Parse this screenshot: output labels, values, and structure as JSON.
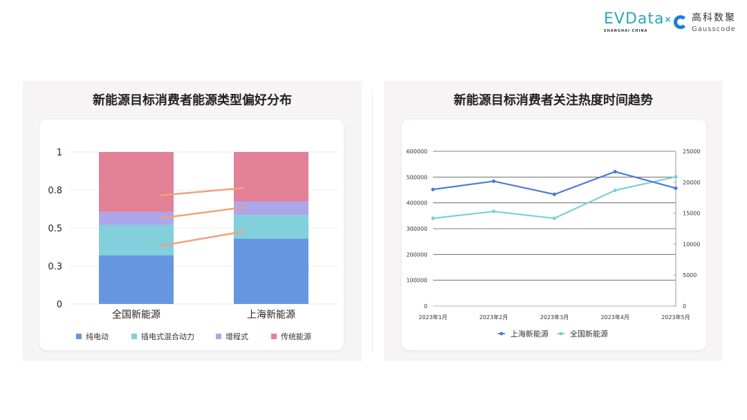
{
  "logos": {
    "evdata": "EVData",
    "evdata_sub": "SHANGHAI CHINA",
    "gauss_cn": "高科数聚",
    "gauss_en": "Gausscode"
  },
  "chart_data": [
    {
      "type": "bar",
      "stacked": true,
      "title": "新能源目标消费者能源类型偏好分布",
      "categories": [
        "全国新能源",
        "上海新能源"
      ],
      "series": [
        {
          "name": "纯电动",
          "color": "#6796e0",
          "values": [
            0.32,
            0.43
          ]
        },
        {
          "name": "插电式混合动力",
          "color": "#81d0db",
          "values": [
            0.2,
            0.155
          ]
        },
        {
          "name": "增程式",
          "color": "#aca6ea",
          "values": [
            0.085,
            0.09
          ]
        },
        {
          "name": "传统能源",
          "color": "#e38198",
          "values": [
            0.395,
            0.325
          ]
        }
      ],
      "ylim": [
        0,
        1
      ],
      "yticks": [
        0,
        0.25,
        0.5,
        0.75,
        1
      ],
      "ytick_labels": [
        "0",
        "0.3",
        "0.5",
        "0.8",
        "1"
      ],
      "grid": true,
      "legend": "bottom",
      "connector_color": "#f2a07e"
    },
    {
      "type": "line",
      "title": "新能源目标消费者关注热度时间趋势",
      "x": [
        "2023年1月",
        "2023年2月",
        "2023年3月",
        "2023年4月",
        "2023年5月"
      ],
      "series": [
        {
          "name": "上海新能源",
          "color": "#4a7bd8",
          "axis": "left",
          "values": [
            452000,
            484000,
            433000,
            521000,
            457000
          ]
        },
        {
          "name": "全国新能源",
          "color": "#7acfd8",
          "axis": "right",
          "values": [
            14170,
            15280,
            14170,
            18690,
            20880
          ]
        }
      ],
      "ylim_left": [
        0,
        600000
      ],
      "yticks_left": [
        "0",
        "100000",
        "200000",
        "300000",
        "400000",
        "500000",
        "600000"
      ],
      "ylim_right": [
        0,
        25000
      ],
      "yticks_right": [
        "0",
        "5000",
        "10000",
        "15000",
        "20000",
        "25000"
      ],
      "grid": true,
      "legend": "bottom"
    }
  ]
}
